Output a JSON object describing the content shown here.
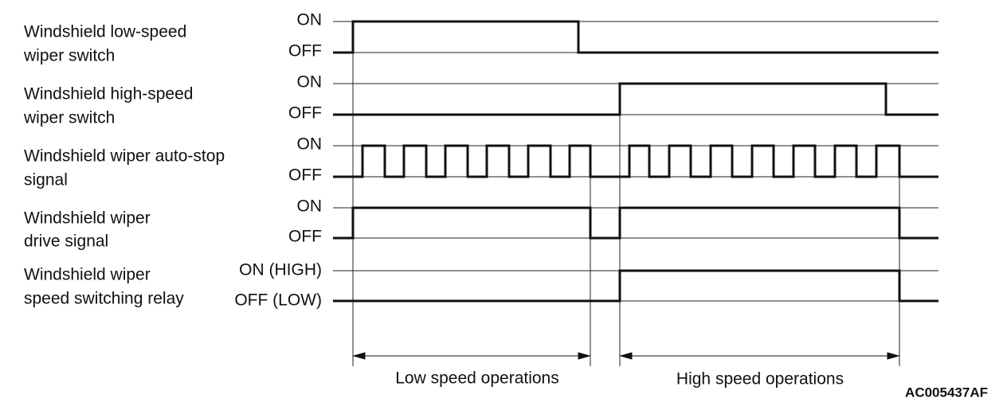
{
  "signals": [
    {
      "label": [
        "Windshield low-speed",
        "wiper switch"
      ],
      "on": "ON",
      "off": "OFF"
    },
    {
      "label": [
        "Windshield high-speed",
        "wiper switch"
      ],
      "on": "ON",
      "off": "OFF"
    },
    {
      "label": [
        "Windshield wiper auto-stop",
        "signal"
      ],
      "on": "ON",
      "off": "OFF"
    },
    {
      "label": [
        "Windshield wiper",
        "drive signal"
      ],
      "on": "ON",
      "off": "OFF"
    },
    {
      "label": [
        "Windshield wiper",
        "speed switching relay"
      ],
      "on": "ON (HIGH)",
      "off": "OFF (LOW)"
    }
  ],
  "spans": [
    "Low speed operations",
    "High speed operations"
  ],
  "code": "AC005437AF"
}
